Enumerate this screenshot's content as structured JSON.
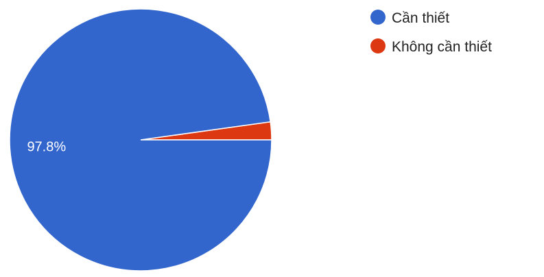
{
  "chart_data": {
    "type": "pie",
    "slices": [
      {
        "label": "Cần thiết",
        "value": 97.8,
        "display": "97.8%",
        "color": "#3366cc"
      },
      {
        "label": "Không cần thiết",
        "value": 2.2,
        "display": "",
        "color": "#dc3912"
      }
    ],
    "legend_position": "top-right"
  }
}
